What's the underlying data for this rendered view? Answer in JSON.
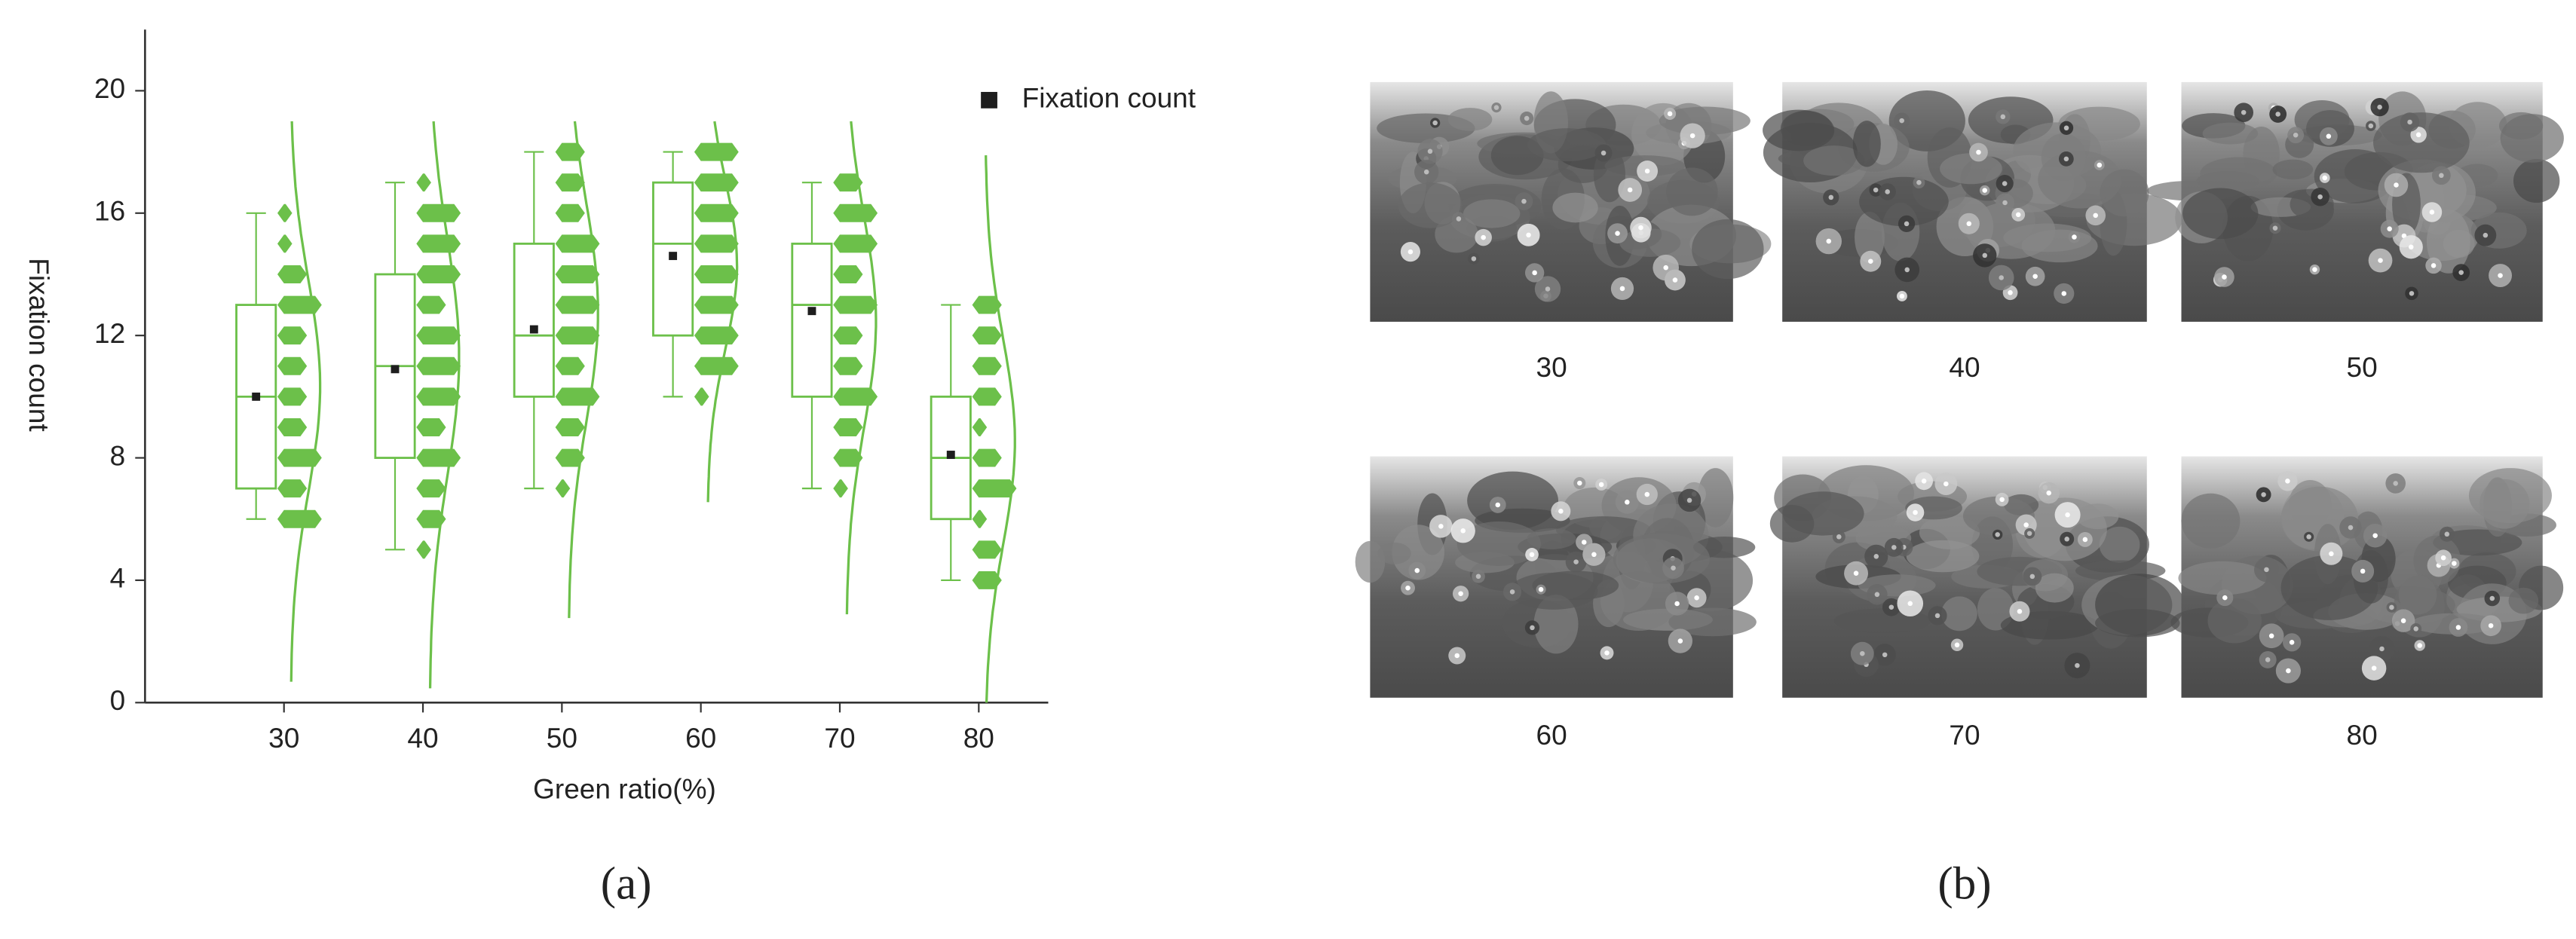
{
  "chart_data": {
    "type": "box-histogram",
    "xlabel": "Green ratio(%)",
    "ylabel": "Fixation count",
    "caption": "(a)",
    "x": [
      30,
      40,
      50,
      60,
      70,
      80
    ],
    "xlim": [
      20,
      85
    ],
    "xticks": [
      30,
      40,
      50,
      60,
      70,
      80
    ],
    "ylim": [
      0,
      22
    ],
    "yticks": [
      0,
      4,
      8,
      12,
      16,
      20
    ],
    "min": [
      6,
      5,
      7,
      10,
      7,
      4
    ],
    "q1": [
      7,
      8,
      10,
      12,
      10,
      6
    ],
    "median": [
      10,
      11,
      12,
      15,
      13,
      8
    ],
    "q3": [
      13,
      14,
      15,
      17,
      15,
      10
    ],
    "max": [
      16,
      17,
      18,
      18,
      17,
      13
    ],
    "mean": [
      10,
      10.9,
      12.2,
      14.6,
      12.8,
      8.1
    ],
    "hist": [
      {
        "levels": [
          6,
          7,
          8,
          9,
          10,
          11,
          12,
          13,
          14,
          15,
          16
        ],
        "counts": [
          3,
          2,
          3,
          2,
          2,
          2,
          2,
          3,
          2,
          1,
          1
        ]
      },
      {
        "levels": [
          5,
          6,
          7,
          8,
          9,
          10,
          11,
          12,
          13,
          14,
          15,
          16,
          17
        ],
        "counts": [
          1,
          2,
          2,
          3,
          2,
          3,
          3,
          3,
          2,
          3,
          3,
          3,
          1
        ]
      },
      {
        "levels": [
          7,
          8,
          9,
          10,
          11,
          12,
          13,
          14,
          15,
          16,
          17,
          18
        ],
        "counts": [
          1,
          2,
          2,
          3,
          2,
          3,
          3,
          3,
          3,
          2,
          2,
          2
        ]
      },
      {
        "levels": [
          10,
          11,
          12,
          13,
          14,
          15,
          16,
          17,
          18
        ],
        "counts": [
          1,
          3,
          3,
          3,
          3,
          3,
          3,
          3,
          3
        ]
      },
      {
        "levels": [
          7,
          8,
          9,
          10,
          11,
          12,
          13,
          14,
          15,
          16,
          17
        ],
        "counts": [
          1,
          2,
          2,
          3,
          2,
          2,
          3,
          2,
          3,
          3,
          2
        ]
      },
      {
        "levels": [
          4,
          5,
          6,
          7,
          8,
          9,
          10,
          11,
          12,
          13
        ],
        "counts": [
          2,
          2,
          1,
          3,
          2,
          1,
          2,
          2,
          2,
          2
        ]
      }
    ],
    "color": "#6cc04a",
    "mean_color": "#1e1e1e",
    "legend": {
      "label": "Fixation count",
      "position": "top-right"
    }
  },
  "panel_b": {
    "caption": "(b)",
    "images": [
      {
        "label": "30"
      },
      {
        "label": "40"
      },
      {
        "label": "50"
      },
      {
        "label": "60"
      },
      {
        "label": "70"
      },
      {
        "label": "80"
      }
    ]
  }
}
